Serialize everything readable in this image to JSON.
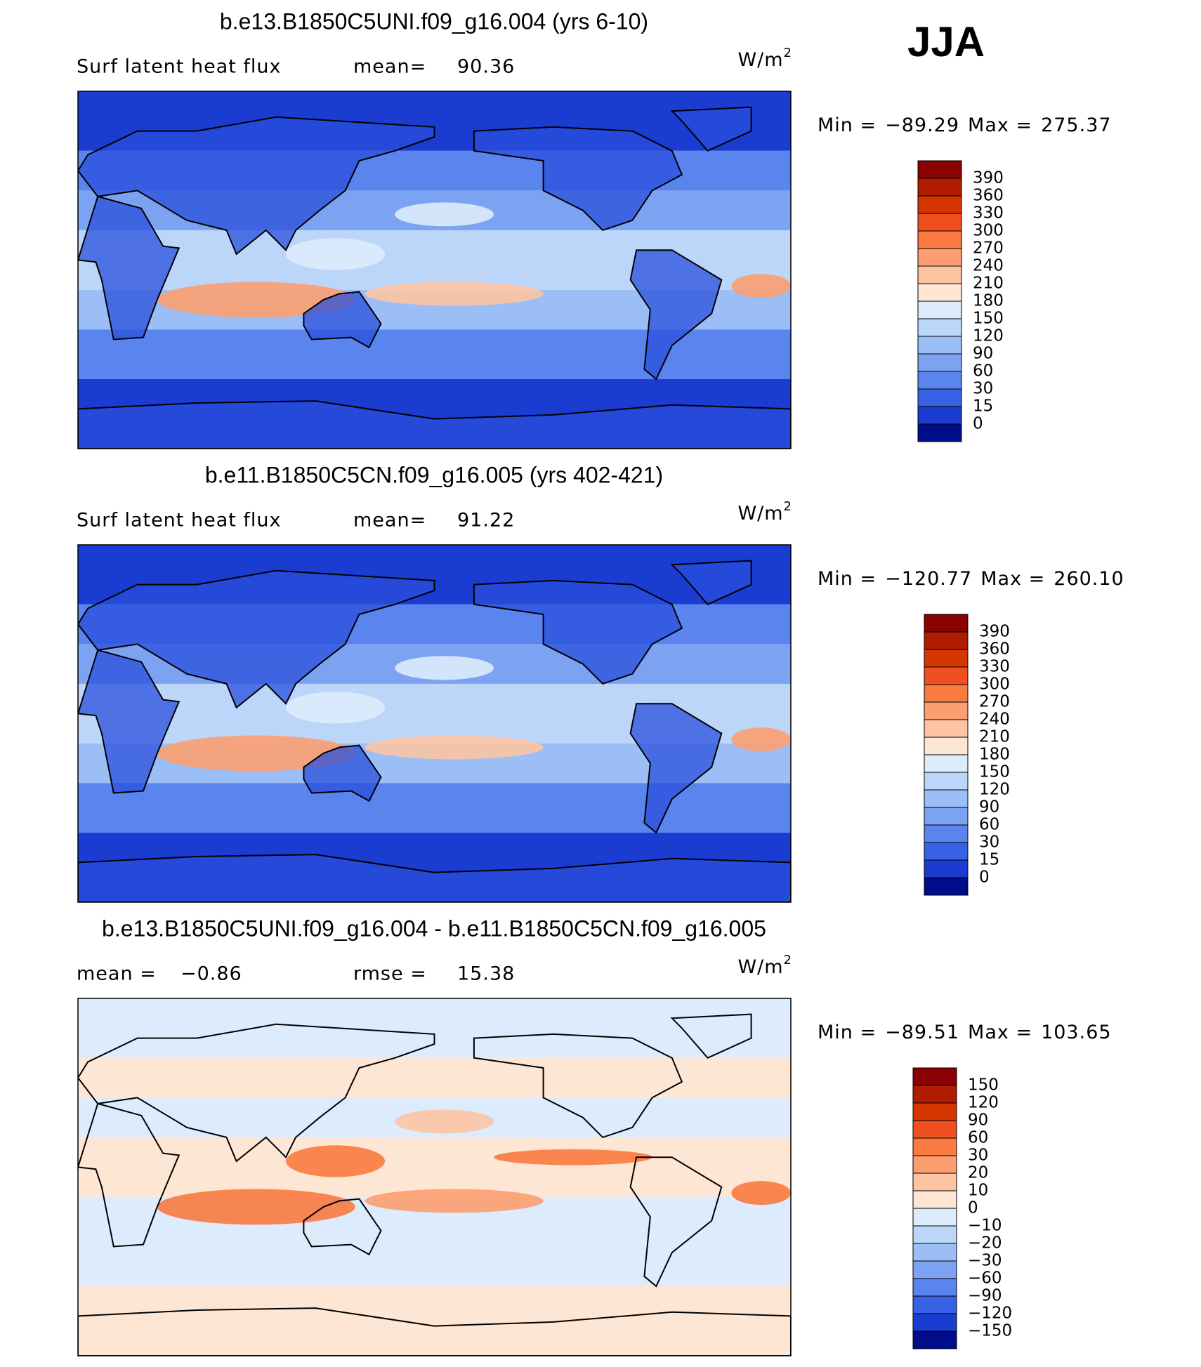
{
  "season": "JJA",
  "panels": [
    {
      "title": "b.e13.B1850C5UNI.f09_g16.004 (yrs 6-10)",
      "variable": "Surf latent heat flux",
      "stats": [
        {
          "label": "mean=",
          "value": "90.36"
        }
      ],
      "units": "W/m",
      "units_exp": "2",
      "min_label": "Min =",
      "min": "−89.29",
      "max_label": "Max =",
      "max": "275.37",
      "colorbar": {
        "levels": [
          390,
          360,
          330,
          300,
          270,
          240,
          210,
          180,
          150,
          120,
          90,
          60,
          30,
          15,
          0
        ],
        "colors": [
          "#8b0000",
          "#b01c00",
          "#d43600",
          "#f05020",
          "#fa7a40",
          "#fc9e70",
          "#fdc4a4",
          "#fde6d4",
          "#dcecfc",
          "#bcd6fa",
          "#9cbef6",
          "#7ca2f2",
          "#5a84ee",
          "#3862e6",
          "#1a3cd0",
          "#000d8a"
        ]
      }
    },
    {
      "title": "b.e11.B1850C5CN.f09_g16.005 (yrs 402-421)",
      "variable": "Surf latent heat flux",
      "stats": [
        {
          "label": "mean=",
          "value": "91.22"
        }
      ],
      "units": "W/m",
      "units_exp": "2",
      "min_label": "Min =",
      "min": "−120.77",
      "max_label": "Max =",
      "max": "260.10",
      "colorbar": {
        "levels": [
          390,
          360,
          330,
          300,
          270,
          240,
          210,
          180,
          150,
          120,
          90,
          60,
          30,
          15,
          0
        ],
        "colors": [
          "#8b0000",
          "#b01c00",
          "#d43600",
          "#f05020",
          "#fa7a40",
          "#fc9e70",
          "#fdc4a4",
          "#fde6d4",
          "#dcecfc",
          "#bcd6fa",
          "#9cbef6",
          "#7ca2f2",
          "#5a84ee",
          "#3862e6",
          "#1a3cd0",
          "#000d8a"
        ]
      }
    },
    {
      "title": "b.e13.B1850C5UNI.f09_g16.004 - b.e11.B1850C5CN.f09_g16.005",
      "stats": [
        {
          "label": "mean =",
          "value": "−0.86"
        },
        {
          "label": "rmse =",
          "value": "15.38"
        }
      ],
      "units": "W/m",
      "units_exp": "2",
      "min_label": "Min =",
      "min": "−89.51",
      "max_label": "Max =",
      "max": "103.65",
      "colorbar": {
        "levels": [
          150,
          120,
          90,
          60,
          30,
          20,
          10,
          0,
          {
            "value": -10,
            "label": "−10"
          },
          {
            "value": -20,
            "label": "−20"
          },
          {
            "value": -30,
            "label": "−30"
          },
          {
            "value": -60,
            "label": "−60"
          },
          {
            "value": -90,
            "label": "−90"
          },
          {
            "value": -120,
            "label": "−120"
          },
          {
            "value": -150,
            "label": "−150"
          }
        ],
        "colors": [
          "#8b0000",
          "#b01c00",
          "#d43600",
          "#f05020",
          "#fa7a40",
          "#fc9e70",
          "#fdc4a4",
          "#fde6d4",
          "#dcecfc",
          "#bcd6fa",
          "#9cbef6",
          "#7ca2f2",
          "#5a84ee",
          "#3862e6",
          "#1a3cd0",
          "#000d8a"
        ]
      }
    }
  ]
}
